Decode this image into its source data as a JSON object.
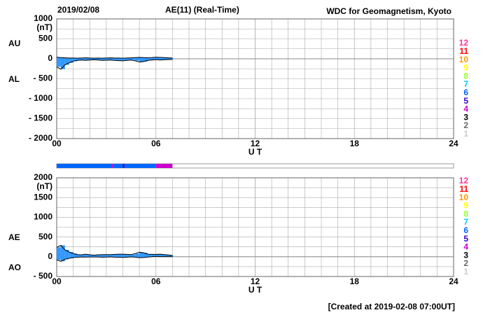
{
  "date": "2019/02/08",
  "title": "AE(11) (Real-Time)",
  "source": "WDC for Geomagnetism, Kyoto",
  "footer": "[Created at 2019-02-08 07:00UT]",
  "levels": [
    12,
    11,
    10,
    9,
    8,
    7,
    6,
    5,
    4,
    3,
    2,
    1
  ],
  "level_colors": [
    "#ff3399",
    "#ff0000",
    "#ff9900",
    "#ffff00",
    "#99ff33",
    "#00ccff",
    "#0066ff",
    "#3300cc",
    "#cc00cc",
    "#000000",
    "#666666",
    "#cccccc"
  ],
  "station_bar": [
    {
      "x0": 0,
      "x1": 3.3,
      "count": 6
    },
    {
      "x0": 3.3,
      "x1": 3.4,
      "count": 4
    },
    {
      "x0": 3.4,
      "x1": 4.0,
      "count": 6
    },
    {
      "x0": 4.0,
      "x1": 4.1,
      "count": 5
    },
    {
      "x0": 4.1,
      "x1": 6,
      "count": 6
    },
    {
      "x0": 6,
      "x1": 7,
      "count": 4
    }
  ],
  "chart_data": [
    {
      "type": "band",
      "ylabel": "(nT)",
      "xlabel": "U T",
      "fill_color": "#3399ff",
      "xlim": [
        0,
        24
      ],
      "xticks": [
        {
          "value": 0,
          "label": "00"
        },
        {
          "value": 6,
          "label": "06"
        },
        12,
        18,
        24
      ],
      "ylim": [
        -2000,
        1000
      ],
      "yticks": [
        1000,
        500,
        0,
        {
          "value": -500,
          "label": "- 500"
        },
        {
          "value": -1000,
          "label": "- 1000"
        },
        {
          "value": -1500,
          "label": "- 1500"
        },
        {
          "value": -2000,
          "label": "- 2000"
        }
      ],
      "x": [
        0,
        0.25,
        0.5,
        0.75,
        1,
        1.25,
        1.5,
        1.75,
        2,
        2.25,
        2.5,
        2.75,
        3,
        3.25,
        3.5,
        3.75,
        4,
        4.25,
        4.5,
        4.75,
        5,
        5.25,
        5.5,
        5.75,
        6,
        6.25,
        6.5,
        6.75,
        7
      ],
      "series": [
        {
          "name": "AU",
          "color": "#000000",
          "values": [
            40,
            30,
            25,
            20,
            20,
            15,
            20,
            25,
            20,
            15,
            20,
            15,
            20,
            25,
            20,
            20,
            15,
            20,
            25,
            30,
            35,
            30,
            25,
            30,
            40,
            35,
            30,
            25,
            20
          ]
        },
        {
          "name": "AL",
          "color": "#000000",
          "values": [
            -200,
            -260,
            -150,
            -100,
            -60,
            -40,
            -30,
            -40,
            -30,
            -25,
            -30,
            -40,
            -35,
            -30,
            -40,
            -45,
            -50,
            -40,
            -30,
            -50,
            -80,
            -70,
            -40,
            -30,
            -20,
            -30,
            -25,
            -20,
            -15
          ]
        }
      ]
    },
    {
      "type": "band",
      "ylabel": "(nT)",
      "xlabel": "U T",
      "fill_color": "#3399ff",
      "xlim": [
        0,
        24
      ],
      "xticks": [
        {
          "value": 0,
          "label": "00"
        },
        {
          "value": 6,
          "label": "06"
        },
        12,
        18,
        24
      ],
      "ylim": [
        -500,
        2000
      ],
      "yticks": [
        2000,
        1500,
        1000,
        500,
        0,
        {
          "value": -500,
          "label": "- 500"
        }
      ],
      "x": [
        0,
        0.25,
        0.5,
        0.75,
        1,
        1.25,
        1.5,
        1.75,
        2,
        2.25,
        2.5,
        2.75,
        3,
        3.25,
        3.5,
        3.75,
        4,
        4.25,
        4.5,
        4.75,
        5,
        5.25,
        5.5,
        5.75,
        6,
        6.25,
        6.5,
        6.75,
        7
      ],
      "series": [
        {
          "name": "AE",
          "color": "#000000",
          "values": [
            240,
            290,
            175,
            120,
            80,
            55,
            50,
            65,
            50,
            40,
            50,
            55,
            55,
            55,
            60,
            65,
            65,
            60,
            55,
            80,
            115,
            100,
            65,
            60,
            60,
            65,
            55,
            45,
            35
          ]
        },
        {
          "name": "AO",
          "color": "#000000",
          "values": [
            -80,
            -115,
            -62.5,
            -40,
            -20,
            -12.5,
            -5,
            -7.5,
            -5,
            -5,
            -5,
            -12.5,
            -7.5,
            -2.5,
            -10,
            -12.5,
            -17.5,
            -10,
            -2.5,
            -10,
            -22.5,
            -20,
            -7.5,
            0,
            10,
            2.5,
            2.5,
            2.5,
            2.5
          ]
        }
      ]
    }
  ]
}
